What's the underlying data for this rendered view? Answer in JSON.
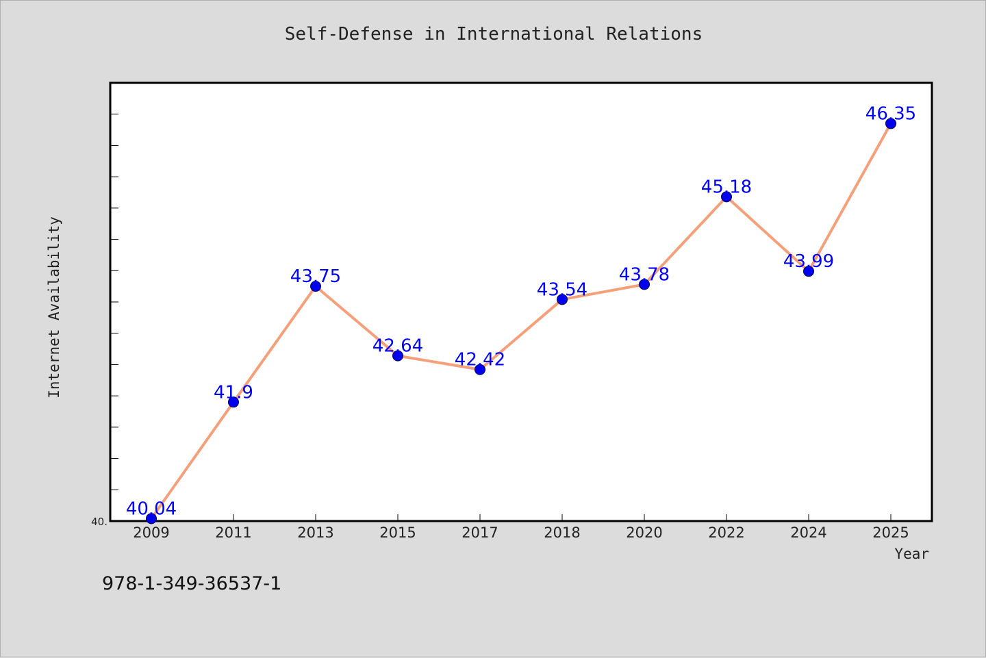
{
  "chart_data": {
    "type": "line",
    "title": "Self-Defense in International Relations",
    "xlabel": "Year",
    "ylabel": "Internet Availability",
    "categories": [
      "2009",
      "2011",
      "2013",
      "2015",
      "2017",
      "2018",
      "2020",
      "2022",
      "2024",
      "2025"
    ],
    "series": [
      {
        "values": [
          40.04,
          41.9,
          43.75,
          42.64,
          42.42,
          43.54,
          43.78,
          45.18,
          43.99,
          46.35
        ]
      }
    ],
    "data_labels": [
      "40.04",
      "41.9",
      "43.75",
      "42.64",
      "42.42",
      "43.54",
      "43.78",
      "45.18",
      "43.99",
      "46.35"
    ],
    "y_tick_label": "40.",
    "ylim": [
      40.0,
      47.0
    ],
    "grid": false,
    "legend": "none",
    "colors": {
      "line": "#f4a07a",
      "marker": "#0000ee",
      "data_label": "#0000ff",
      "plot_background": "#ffffff",
      "figure_background": "#dcdcdc"
    }
  },
  "footer": {
    "isbn": "978-1-349-36537-1"
  }
}
